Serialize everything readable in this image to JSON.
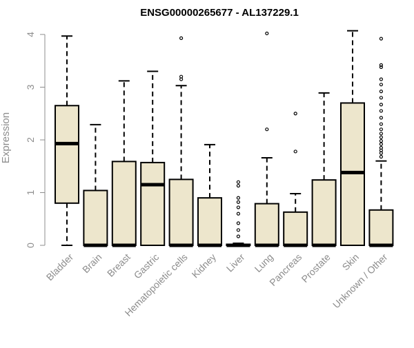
{
  "chart_data": {
    "type": "boxplot",
    "title": "ENSG00000265677 - AL137229.1",
    "ylabel": "Expression",
    "xlabel": "",
    "ylim": [
      0,
      4.15
    ],
    "yticks": [
      0,
      1,
      2,
      3,
      4
    ],
    "grid": false,
    "legend": "none",
    "box_fill": "#ede6cc",
    "line_color": "#000000",
    "axis_text_color": "#8c8c8c",
    "categories": [
      "Bladder",
      "Brain",
      "Breast",
      "Gastric",
      "Hematopoietic cells",
      "Kidney",
      "Liver",
      "Lung",
      "Pancreas",
      "Prostate",
      "Skin",
      "Unknown / Other"
    ],
    "boxes": [
      {
        "q1": 0.8,
        "median": 1.93,
        "q3": 2.65,
        "whisker_low": 0.0,
        "whisker_high": 3.97,
        "outliers": []
      },
      {
        "q1": 0.0,
        "median": 0.0,
        "q3": 1.04,
        "whisker_low": 0.0,
        "whisker_high": 2.29,
        "outliers": []
      },
      {
        "q1": 0.0,
        "median": 0.0,
        "q3": 1.59,
        "whisker_low": 0.0,
        "whisker_high": 3.12,
        "outliers": []
      },
      {
        "q1": 0.0,
        "median": 1.15,
        "q3": 1.57,
        "whisker_low": 0.0,
        "whisker_high": 3.3,
        "outliers": []
      },
      {
        "q1": 0.0,
        "median": 0.0,
        "q3": 1.25,
        "whisker_low": 0.0,
        "whisker_high": 3.03,
        "outliers": [
          3.15,
          3.2,
          3.93
        ]
      },
      {
        "q1": 0.0,
        "median": 0.0,
        "q3": 0.9,
        "whisker_low": 0.0,
        "whisker_high": 1.91,
        "outliers": []
      },
      {
        "q1": 0.0,
        "median": 0.0,
        "q3": 0.02,
        "whisker_low": 0.0,
        "whisker_high": 0.04,
        "outliers": [
          0.17,
          0.29,
          0.42,
          0.6,
          0.72,
          0.82,
          0.9,
          1.13,
          1.2
        ]
      },
      {
        "q1": 0.0,
        "median": 0.0,
        "q3": 0.79,
        "whisker_low": 0.0,
        "whisker_high": 1.66,
        "outliers": [
          2.2,
          4.02
        ]
      },
      {
        "q1": 0.0,
        "median": 0.0,
        "q3": 0.63,
        "whisker_low": 0.0,
        "whisker_high": 0.98,
        "outliers": [
          1.78,
          2.5
        ]
      },
      {
        "q1": 0.0,
        "median": 0.0,
        "q3": 1.24,
        "whisker_low": 0.0,
        "whisker_high": 2.89,
        "outliers": []
      },
      {
        "q1": 0.0,
        "median": 1.38,
        "q3": 2.7,
        "whisker_low": 0.0,
        "whisker_high": 4.07,
        "outliers": []
      },
      {
        "q1": 0.0,
        "median": 0.0,
        "q3": 0.67,
        "whisker_low": 0.0,
        "whisker_high": 1.6,
        "outliers": [
          1.68,
          1.75,
          1.8,
          1.85,
          1.92,
          1.98,
          2.05,
          2.12,
          2.2,
          2.3,
          2.42,
          2.55,
          2.67,
          2.8,
          2.92,
          3.05,
          3.15,
          3.38,
          3.42,
          3.92
        ]
      }
    ]
  }
}
